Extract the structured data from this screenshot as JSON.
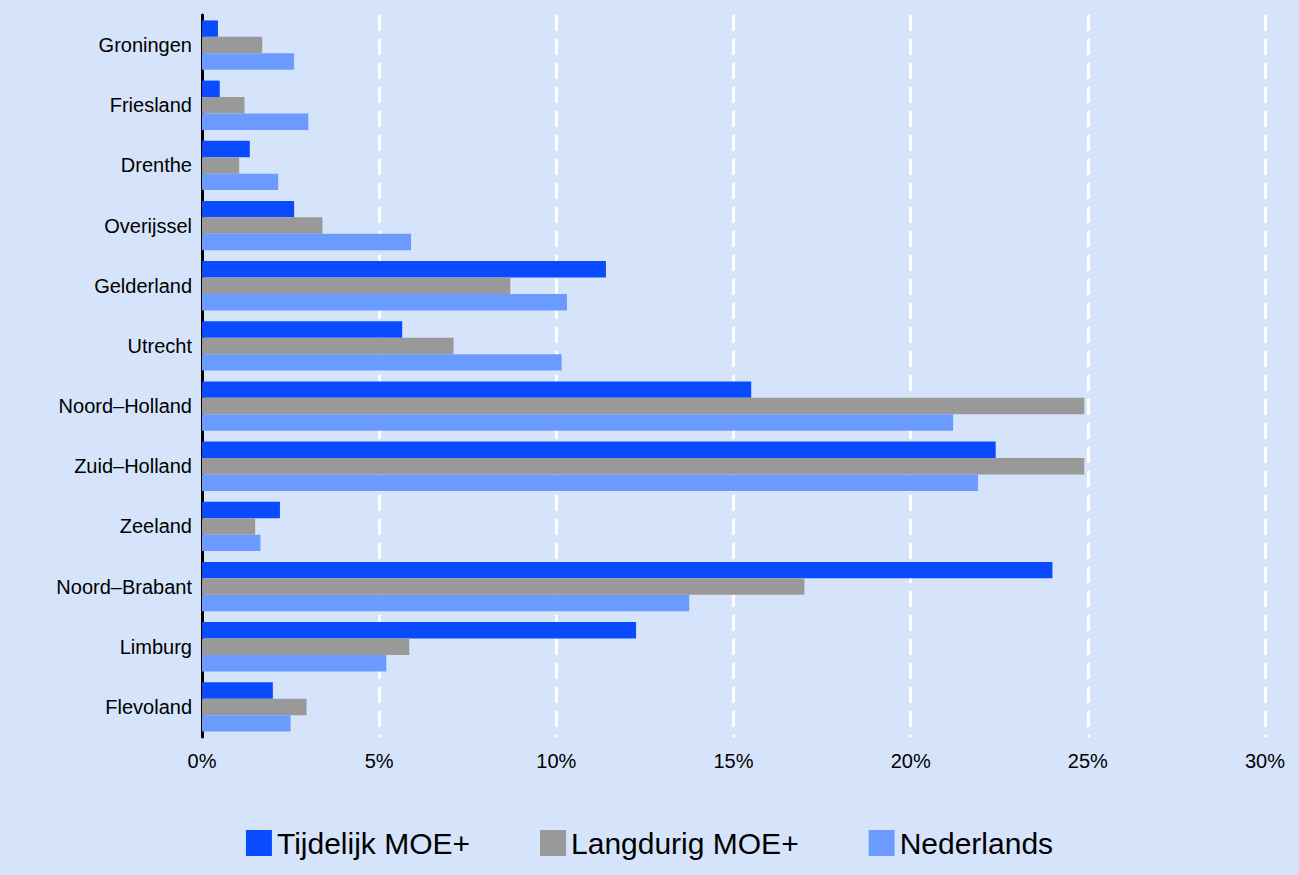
{
  "chart_data": {
    "type": "bar",
    "orientation": "horizontal",
    "categories": [
      "Groningen",
      "Friesland",
      "Drenthe",
      "Overijssel",
      "Gelderland",
      "Utrecht",
      "Noord–Holland",
      "Zuid–Holland",
      "Zeeland",
      "Noord–Brabant",
      "Limburg",
      "Flevoland"
    ],
    "series": [
      {
        "name": "Tijdelijk MOE+",
        "color": "#0a4bff",
        "values": [
          0.45,
          0.5,
          1.35,
          2.6,
          11.4,
          5.65,
          15.5,
          22.4,
          2.2,
          24.0,
          12.25,
          2.0
        ]
      },
      {
        "name": "Langdurig MOE+",
        "color": "#999999",
        "values": [
          1.7,
          1.2,
          1.05,
          3.4,
          8.7,
          7.1,
          24.9,
          24.9,
          1.5,
          17.0,
          5.85,
          2.95
        ]
      },
      {
        "name": "Nederlands",
        "color": "#6b9bff",
        "values": [
          2.6,
          3.0,
          2.15,
          5.9,
          10.3,
          10.15,
          21.2,
          21.9,
          1.65,
          13.75,
          5.2,
          2.5
        ]
      }
    ],
    "xlim": [
      0,
      30
    ],
    "xticks": [
      {
        "value": 0,
        "label": "0%"
      },
      {
        "value": 5,
        "label": "5%"
      },
      {
        "value": 10,
        "label": "10%"
      },
      {
        "value": 15,
        "label": "15%"
      },
      {
        "value": 20,
        "label": "20%"
      },
      {
        "value": 25,
        "label": "25%"
      },
      {
        "value": 30,
        "label": "30%"
      }
    ],
    "grid": true,
    "legend": "bottom"
  }
}
